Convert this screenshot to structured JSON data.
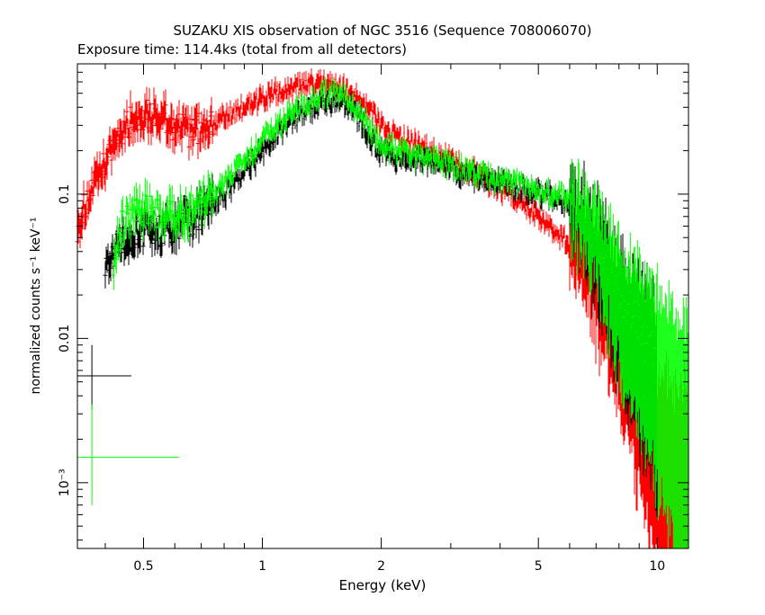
{
  "chart_data": {
    "type": "scatter",
    "title": "SUZAKU XIS observation of NGC 3516 (Sequence 708006070)",
    "subtitle": "Exposure time: 114.4ks (total from all detectors)",
    "xlabel": "Energy (keV)",
    "ylabel": "normalized counts s⁻¹ keV⁻¹",
    "xscale": "log",
    "yscale": "log",
    "xlim": [
      0.34,
      12.0
    ],
    "ylim": [
      0.00035,
      0.8
    ],
    "x_tick_labels": [
      "0.5",
      "1",
      "2",
      "5",
      "10"
    ],
    "y_tick_labels": [
      "10⁻³",
      "0.01",
      "0.1"
    ],
    "grid": false,
    "legend": "none",
    "series": [
      {
        "color": "#ff0000",
        "energy_keV": [
          0.34,
          0.36,
          0.38,
          0.4,
          0.42,
          0.44,
          0.47,
          0.5,
          0.55,
          0.6,
          0.65,
          0.7,
          0.8,
          0.9,
          1.0,
          1.1,
          1.2,
          1.3,
          1.4,
          1.5,
          1.6,
          1.7,
          1.8,
          1.9,
          2.0,
          2.2,
          2.5,
          3.0,
          3.5,
          4.0,
          4.5,
          5.0,
          5.5,
          6.0,
          6.5,
          7.0,
          7.5,
          8.0,
          8.5,
          9.0,
          9.5,
          10.0,
          10.5,
          11.0,
          11.5,
          12.0
        ],
        "counts": [
          0.06,
          0.09,
          0.12,
          0.16,
          0.22,
          0.28,
          0.33,
          0.36,
          0.34,
          0.3,
          0.27,
          0.29,
          0.33,
          0.4,
          0.46,
          0.5,
          0.54,
          0.57,
          0.58,
          0.56,
          0.53,
          0.5,
          0.44,
          0.37,
          0.3,
          0.25,
          0.21,
          0.17,
          0.14,
          0.11,
          0.09,
          0.07,
          0.055,
          0.045,
          0.035,
          0.025,
          0.017,
          0.011,
          0.007,
          0.0045,
          0.003,
          0.002,
          0.0015,
          0.0012,
          0.001,
          0.001
        ]
      },
      {
        "color": "#000000",
        "energy_keV": [
          0.4,
          0.42,
          0.45,
          0.5,
          0.55,
          0.6,
          0.65,
          0.7,
          0.75,
          0.8,
          0.9,
          1.0,
          1.1,
          1.2,
          1.3,
          1.4,
          1.5,
          1.6,
          1.7,
          1.8,
          1.9,
          2.0,
          2.2,
          2.5,
          3.0,
          3.5,
          4.0,
          4.5,
          5.0,
          5.5,
          6.0,
          6.5,
          7.0,
          7.5,
          8.0,
          9.0,
          10.0
        ],
        "counts": [
          0.035,
          0.04,
          0.048,
          0.055,
          0.055,
          0.06,
          0.065,
          0.075,
          0.085,
          0.1,
          0.14,
          0.2,
          0.27,
          0.33,
          0.38,
          0.42,
          0.45,
          0.44,
          0.38,
          0.3,
          0.23,
          0.19,
          0.18,
          0.17,
          0.15,
          0.13,
          0.12,
          0.11,
          0.1,
          0.095,
          0.09,
          0.075,
          0.05,
          0.032,
          0.02,
          0.011,
          0.006
        ]
      },
      {
        "color": "#00ff00",
        "energy_keV": [
          0.42,
          0.44,
          0.47,
          0.5,
          0.55,
          0.6,
          0.65,
          0.7,
          0.75,
          0.8,
          0.9,
          1.0,
          1.1,
          1.2,
          1.3,
          1.4,
          1.5,
          1.6,
          1.7,
          1.8,
          1.9,
          2.0,
          2.2,
          2.5,
          3.0,
          3.5,
          4.0,
          4.5,
          5.0,
          5.5,
          6.0,
          6.5,
          7.0,
          7.5,
          8.0,
          9.0,
          10.0,
          11.0,
          12.0
        ],
        "counts": [
          0.035,
          0.06,
          0.07,
          0.078,
          0.075,
          0.07,
          0.075,
          0.085,
          0.1,
          0.12,
          0.17,
          0.24,
          0.3,
          0.37,
          0.43,
          0.48,
          0.5,
          0.48,
          0.42,
          0.33,
          0.26,
          0.22,
          0.2,
          0.18,
          0.16,
          0.14,
          0.125,
          0.115,
          0.105,
          0.1,
          0.095,
          0.08,
          0.055,
          0.035,
          0.022,
          0.012,
          0.007,
          0.004,
          0.003
        ]
      }
    ],
    "sample_error_bars": [
      {
        "color": "#000000",
        "center_keV": 0.37,
        "half_width_decades": 0.1,
        "value": 0.0055,
        "low": 0.0032,
        "high": 0.009
      },
      {
        "color": "#00ff00",
        "center_keV": 0.37,
        "half_width_decades": 0.22,
        "value": 0.0015,
        "low": 0.0007,
        "high": 0.0035
      }
    ]
  }
}
